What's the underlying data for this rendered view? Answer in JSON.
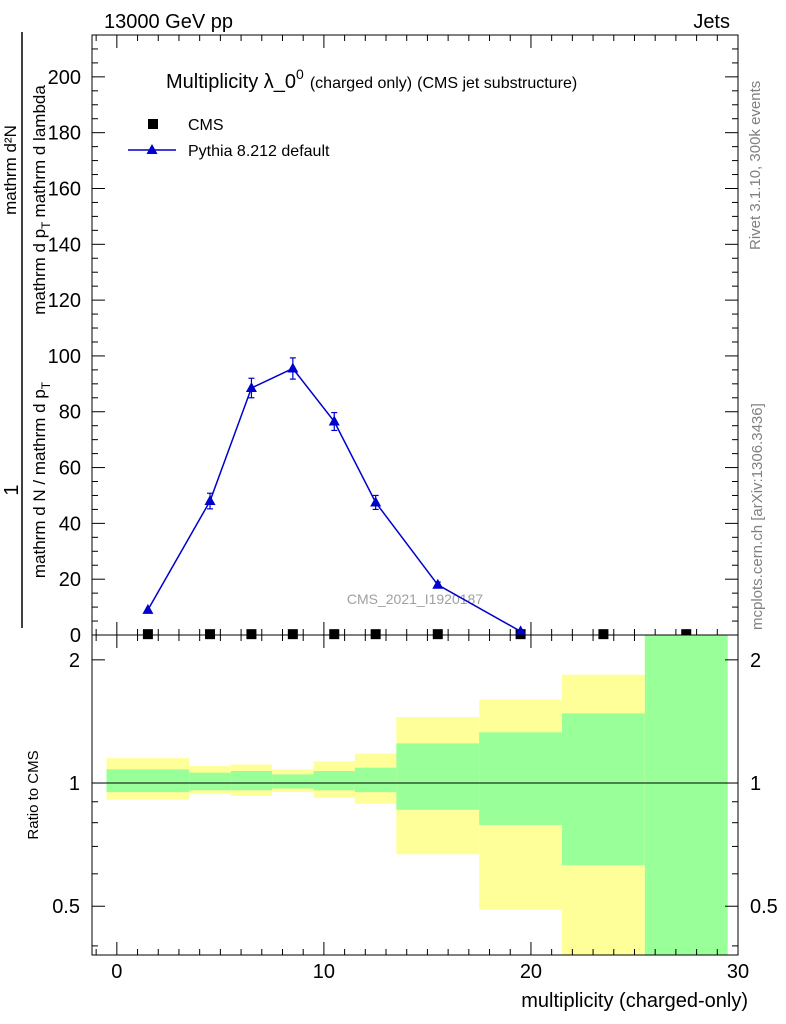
{
  "header": {
    "left": "13000 GeV pp",
    "right": "Jets"
  },
  "side_labels": {
    "rivet": "Rivet 3.1.10,  300k events",
    "mcplots": "mcplots.cern.ch [arXiv:1306.3436]"
  },
  "chart_data": [
    {
      "type": "line",
      "panel": "main",
      "title_main": "Multiplicity λ_0",
      "title_sup": "0",
      "title_small": "(charged only)",
      "title_rest": "(CMS jet substructure)",
      "analysis_id": "CMS_2021_I1920187",
      "ylabel": {
        "numerator": "1",
        "denominator": "mathrm d N / mathrm d p",
        "denominator_sub": "T",
        "deriv_top": "mathrm d²N",
        "deriv_bottom": "mathrm d p",
        "deriv_bottom_rest": "mathrm d lambda",
        "deriv_sub": "T"
      },
      "ylim": [
        0,
        215
      ],
      "yticks": [
        0,
        20,
        40,
        60,
        80,
        100,
        120,
        140,
        160,
        180,
        200
      ],
      "legend": [
        {
          "label": "CMS",
          "marker": "square",
          "color": "#000000"
        },
        {
          "label": "Pythia 8.212 default",
          "marker": "triangle",
          "color": "#0000cc"
        }
      ],
      "series": [
        {
          "name": "CMS",
          "x": [
            1.5,
            4.5,
            6.5,
            8.5,
            10.5,
            12.5,
            15.5,
            19.5,
            23.5,
            27.5
          ],
          "y": [
            0.3,
            0.3,
            0.3,
            0.3,
            0.3,
            0.3,
            0.3,
            0.3,
            0.3,
            0.3
          ]
        },
        {
          "name": "Pythia 8.212 default",
          "x": [
            1.5,
            4.5,
            6.5,
            8.5,
            10.5,
            12.5,
            15.5,
            19.5
          ],
          "y": [
            9,
            48,
            88.5,
            95.5,
            76.5,
            47.5,
            18,
            1.3
          ],
          "err": [
            0.5,
            2.8,
            3.5,
            3.8,
            3.2,
            2.5,
            1.0,
            0.3
          ]
        }
      ]
    },
    {
      "type": "area",
      "panel": "ratio",
      "ylabel": "Ratio to CMS",
      "xlabel": "multiplicity (charged-only)",
      "xlim": [
        -1.2,
        30
      ],
      "xticks": [
        0,
        10,
        20,
        30
      ],
      "ylim": [
        0.38,
        2.3
      ],
      "yticks": [
        0.5,
        1,
        2
      ],
      "ytick_labels": [
        "0.5",
        "1",
        "2"
      ],
      "bands": {
        "edges": [
          -0.5,
          3.5,
          5.5,
          7.5,
          9.5,
          11.5,
          13.5,
          17.5,
          21.5,
          25.5,
          29.5
        ],
        "yellow_low": [
          0.91,
          0.94,
          0.93,
          0.95,
          0.92,
          0.89,
          0.67,
          0.49,
          0.37,
          0.37
        ],
        "yellow_high": [
          1.15,
          1.1,
          1.11,
          1.08,
          1.13,
          1.18,
          1.45,
          1.6,
          1.84,
          2.3
        ],
        "green_low": [
          0.95,
          0.96,
          0.96,
          0.97,
          0.96,
          0.95,
          0.86,
          0.79,
          0.63,
          0.37
        ],
        "green_high": [
          1.08,
          1.06,
          1.07,
          1.05,
          1.07,
          1.09,
          1.25,
          1.33,
          1.48,
          2.3
        ]
      },
      "colors": {
        "yellow": "#ffff99",
        "green": "#99ff99",
        "reference_line": "#000000"
      }
    }
  ]
}
